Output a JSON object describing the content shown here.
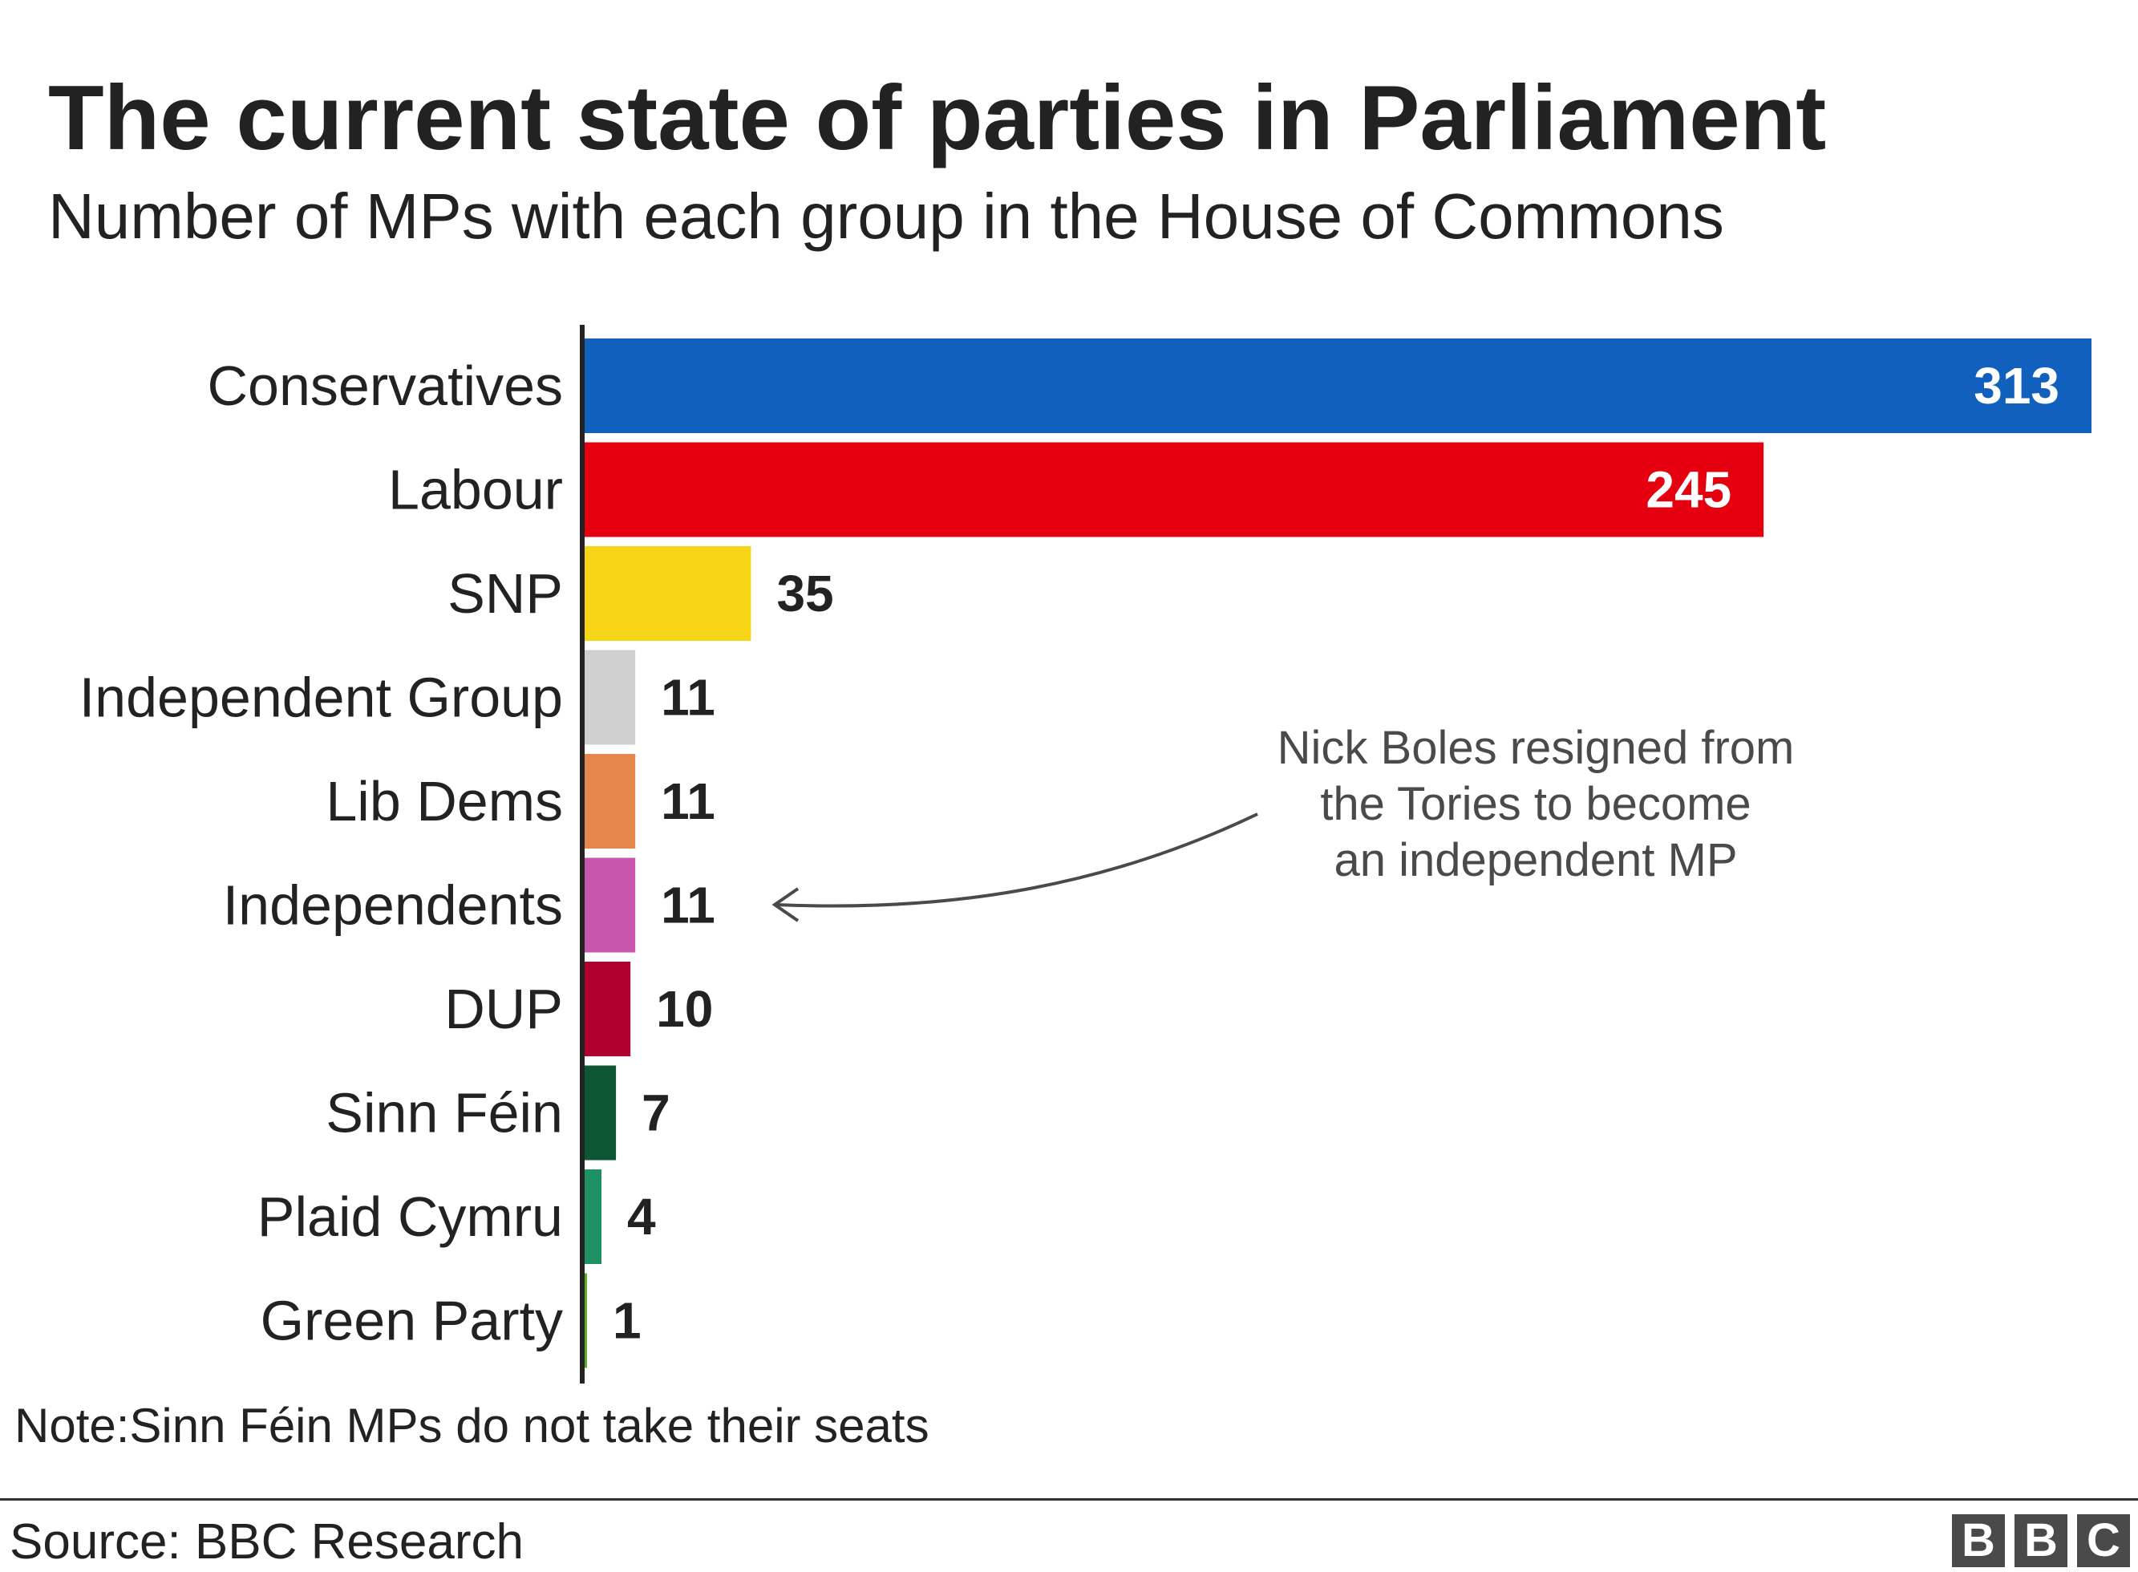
{
  "header": {
    "title": "The current state of parties in Parliament",
    "subtitle": "Number of MPs with each group in the House of Commons"
  },
  "chart_data": {
    "type": "bar",
    "orientation": "horizontal",
    "title": "The current state of parties in Parliament",
    "subtitle": "Number of MPs with each group in the House of Commons",
    "xlabel": "",
    "ylabel": "",
    "xlim": [
      0,
      313
    ],
    "grid": false,
    "legend": "none",
    "categories": [
      "Conservatives",
      "Labour",
      "SNP",
      "Independent Group",
      "Lib Dems",
      "Independents",
      "DUP",
      "Sinn Féin",
      "Plaid Cymru",
      "Green Party"
    ],
    "values": [
      313,
      245,
      35,
      11,
      11,
      11,
      10,
      7,
      4,
      1
    ],
    "colors": [
      "#1160be",
      "#e4000f",
      "#f6d416",
      "#d0d0d0",
      "#e5864b",
      "#c956ad",
      "#b0002f",
      "#0c5634",
      "#1e9064",
      "#5fae2b"
    ],
    "label_inside": [
      true,
      true,
      false,
      false,
      false,
      false,
      false,
      false,
      false,
      false
    ],
    "annotation": {
      "lines": [
        "Nick Boles resigned from",
        "the Tories to become",
        "an independent MP"
      ],
      "target_category": "Independents"
    }
  },
  "footer": {
    "note": "Note:Sinn Féin MPs do not take their seats",
    "source": "Source: BBC Research",
    "logo_letters": [
      "B",
      "B",
      "C"
    ]
  }
}
